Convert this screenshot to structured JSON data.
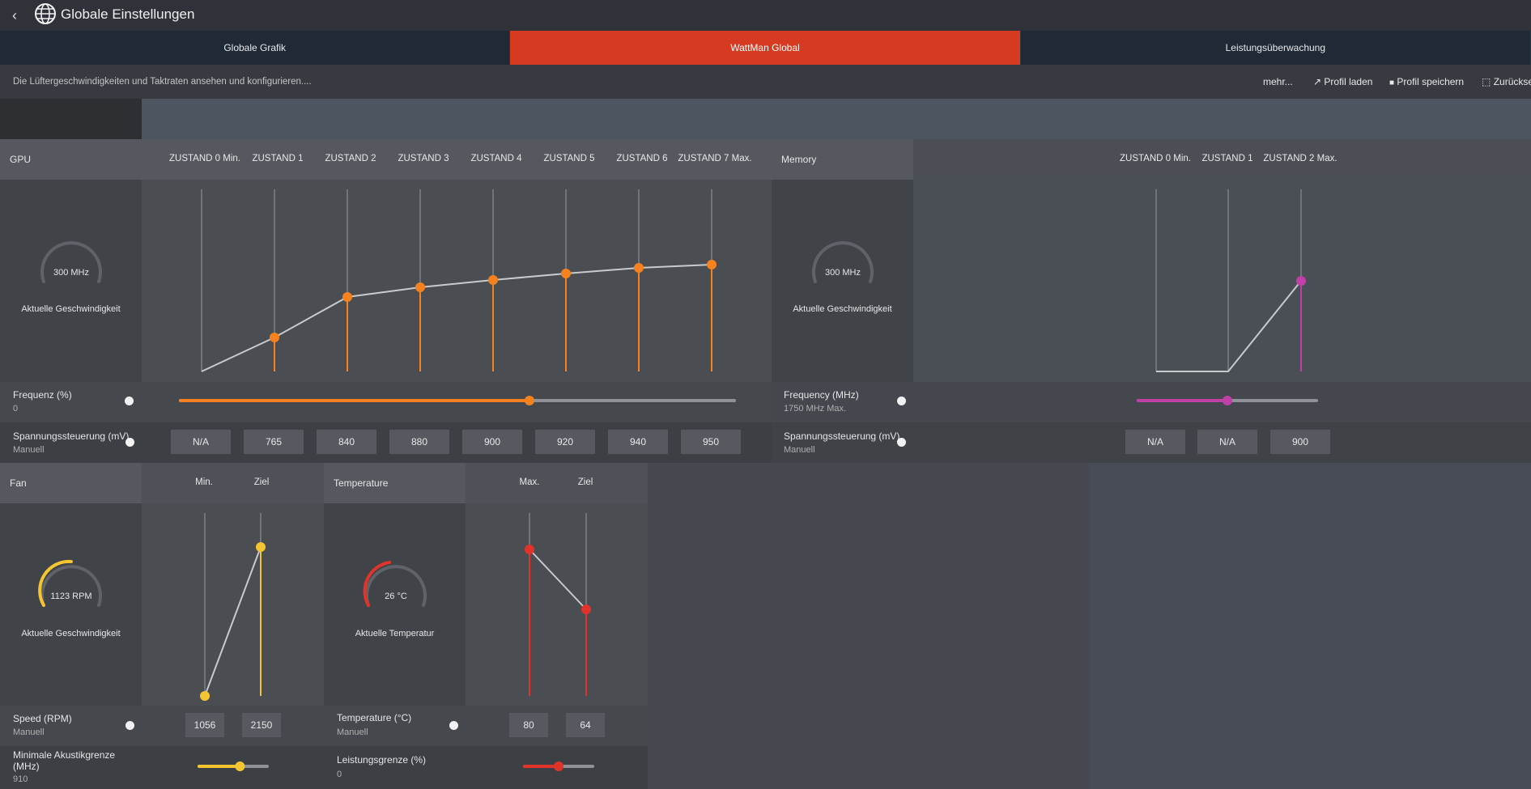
{
  "window": {
    "title": "Globale Einstellungen"
  },
  "tabs": [
    {
      "label": "Globale Grafik",
      "active": false
    },
    {
      "label": "WattMan Global",
      "active": true
    },
    {
      "label": "Leistungsüberwachung",
      "active": false
    }
  ],
  "subheader": {
    "description": "Die Lüftergeschwindigkeiten und Taktraten ansehen und konfigurieren....",
    "more": "mehr...",
    "load_profile": "Profil laden",
    "save_profile": "Profil speichern",
    "reset": "Zurückse"
  },
  "gpu": {
    "title": "GPU",
    "gauge_value": "300 MHz",
    "gauge_label": "Aktuelle Geschwindigkeit",
    "states": [
      "ZUSTAND 0 Min.",
      "ZUSTAND 1",
      "ZUSTAND 2",
      "ZUSTAND 3",
      "ZUSTAND 4",
      "ZUSTAND 5",
      "ZUSTAND 6",
      "ZUSTAND 7 Max."
    ],
    "freq_label": "Frequenz (%)",
    "freq_value": "0",
    "freq_slider_fraction": 0.63,
    "volt_label": "Spannungssteuerung (mV)",
    "volt_mode": "Manuell",
    "voltages": [
      "N/A",
      "765",
      "840",
      "880",
      "900",
      "920",
      "940",
      "950"
    ],
    "accent": "#f5821f"
  },
  "memory": {
    "title": "Memory",
    "gauge_value": "300 MHz",
    "gauge_label": "Aktuelle Geschwindigkeit",
    "states": [
      "ZUSTAND 0 Min.",
      "ZUSTAND 1",
      "ZUSTAND 2 Max."
    ],
    "freq_label": "Frequency (MHz)",
    "freq_value": "1750 MHz Max.",
    "freq_slider_fraction": 0.5,
    "volt_label": "Spannungssteuerung (mV)",
    "volt_mode": "Manuell",
    "voltages": [
      "N/A",
      "N/A",
      "900"
    ],
    "accent": "#c040a8"
  },
  "fan": {
    "title": "Fan",
    "gauge_value": "1123 RPM",
    "gauge_label": "Aktuelle Geschwindigkeit",
    "cols": [
      "Min.",
      "Ziel"
    ],
    "speed_label": "Speed (RPM)",
    "speed_mode": "Manuell",
    "speeds": [
      "1056",
      "2150"
    ],
    "acoustic_label": "Minimale Akustikgrenze (MHz)",
    "acoustic_value": "910",
    "acoustic_slider_fraction": 0.6,
    "accent": "#f5c531"
  },
  "temperature": {
    "title": "Temperature",
    "gauge_value": "26 °C",
    "gauge_label": "Aktuelle Temperatur",
    "cols": [
      "Max.",
      "Ziel"
    ],
    "temp_label": "Temperature (°C)",
    "temp_mode": "Manuell",
    "temps": [
      "80",
      "64"
    ],
    "power_label": "Leistungsgrenze (%)",
    "power_value": "0",
    "power_slider_fraction": 0.5,
    "accent": "#e0342a"
  }
}
